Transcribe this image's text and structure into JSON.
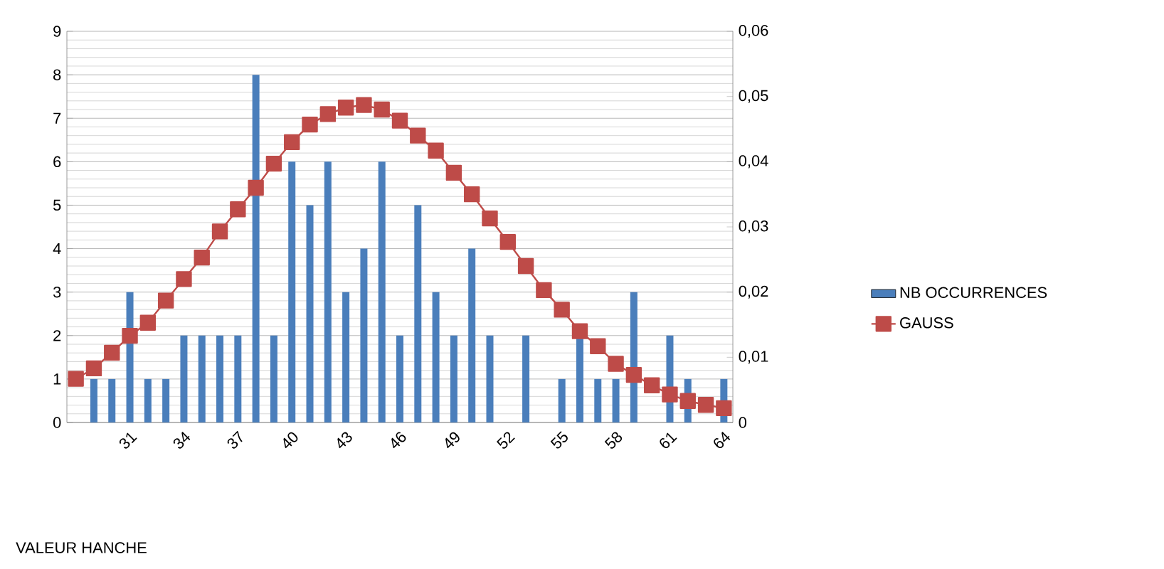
{
  "chart_data": {
    "type": "bar",
    "annotations": [
      "VALEUR HANCHE"
    ],
    "categories": [
      null,
      null,
      null,
      "31",
      null,
      null,
      "34",
      null,
      null,
      "37",
      null,
      null,
      "40",
      null,
      null,
      "43",
      null,
      null,
      "46",
      null,
      null,
      "49",
      null,
      null,
      "52",
      null,
      null,
      "55",
      null,
      null,
      "58",
      null,
      null,
      "61",
      null,
      null,
      "64"
    ],
    "series": [
      {
        "name": "NB OCCURRENCES",
        "color": "#4a7ebb",
        "values": [
          null,
          1,
          1,
          3,
          1,
          1,
          2,
          2,
          2,
          2,
          8,
          2,
          6,
          5,
          6,
          3,
          4,
          6,
          2,
          5,
          3,
          2,
          4,
          2,
          0,
          2,
          0,
          1,
          2,
          1,
          1,
          3,
          null,
          2,
          1,
          0,
          1
        ]
      },
      {
        "name": "GAUSS",
        "type": "line",
        "axis": "y2",
        "color": "#be4b48",
        "marker": "square",
        "line_style": "solid",
        "values": [
          0.0067,
          0.0083,
          0.0107,
          0.0133,
          0.0153,
          0.0187,
          0.022,
          0.0253,
          0.0293,
          0.0327,
          0.036,
          0.0397,
          0.043,
          0.0457,
          0.0473,
          0.0483,
          0.0487,
          0.048,
          0.0463,
          0.044,
          0.0417,
          0.0383,
          0.035,
          0.0313,
          0.0277,
          0.024,
          0.0203,
          0.0173,
          0.014,
          0.0117,
          0.009,
          0.0073,
          0.0057,
          0.0043,
          0.0033,
          0.0027,
          0.0022
        ]
      }
    ],
    "ylim": [
      0,
      9
    ],
    "yticks": [
      0,
      1,
      2,
      3,
      4,
      5,
      6,
      7,
      8,
      9
    ],
    "y2lim": [
      0,
      0.06
    ],
    "y2ticks": [
      0,
      {
        "value": 0.01,
        "label": "0,01"
      },
      {
        "value": 0.02,
        "label": "0,02"
      },
      {
        "value": 0.03,
        "label": "0,03"
      },
      {
        "value": 0.04,
        "label": "0,04"
      },
      {
        "value": 0.05,
        "label": "0,05"
      },
      {
        "value": 0.06,
        "label": "0,06"
      }
    ],
    "grid": "y",
    "legend": "right"
  }
}
